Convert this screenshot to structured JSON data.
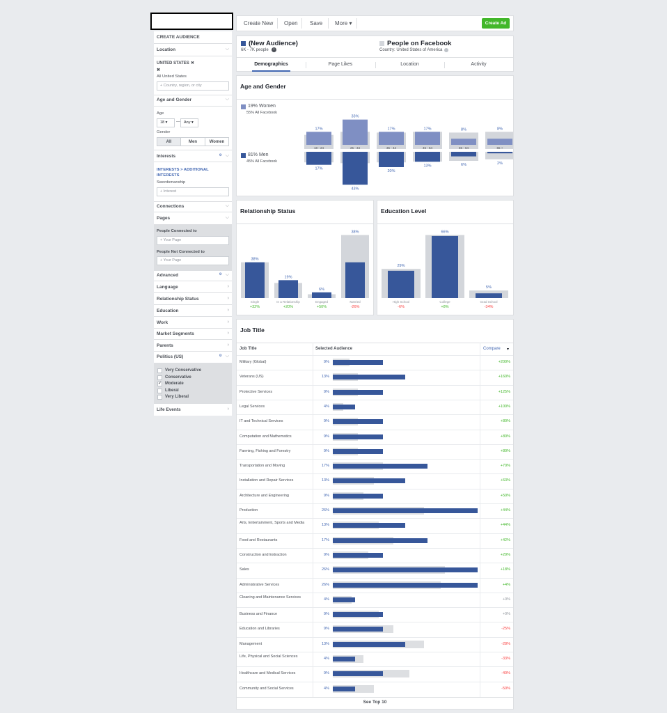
{
  "toolbar": {
    "create_new": "Create New",
    "open": "Open",
    "save": "Save",
    "more": "More ▾",
    "create_ad": "Create Ad"
  },
  "sidebar": {
    "title": "CREATE AUDIENCE",
    "location": {
      "label": "Location",
      "country": "UNITED STATES",
      "remove": "✖",
      "region": "All United States",
      "placeholder": "Country, region, or city"
    },
    "age_gender": {
      "label": "Age and Gender",
      "age_label": "Age",
      "age_min": "18 ▾",
      "dash": "—",
      "age_max": "Any ▾",
      "gender_label": "Gender",
      "gender_options": [
        "All",
        "Men",
        "Women"
      ],
      "gender_selected": "All"
    },
    "interests": {
      "label": "Interests",
      "breadcrumb": "INTERESTS > ADDITIONAL INTERESTS",
      "value": "Swordsmanship",
      "placeholder": "Interest"
    },
    "connections": "Connections",
    "pages": {
      "label": "Pages",
      "connected_label": "People Connected to",
      "not_connected_label": "People Not Connected to",
      "placeholder": "Your Page"
    },
    "collapsed": [
      "Advanced",
      "Language",
      "Relationship Status",
      "Education",
      "Work",
      "Market Segments",
      "Parents"
    ],
    "politics": {
      "label": "Politics (US)",
      "options": [
        {
          "label": "Very Conservative",
          "checked": false
        },
        {
          "label": "Conservative",
          "checked": false
        },
        {
          "label": "Moderate",
          "checked": true
        },
        {
          "label": "Liberal",
          "checked": false
        },
        {
          "label": "Very Liberal",
          "checked": false
        }
      ]
    },
    "life_events": "Life Events"
  },
  "header": {
    "audience_name": "(New Audience)",
    "audience_size": "6K - 7K people",
    "compare_name": "People on Facebook",
    "compare_country": "Country: United States of America",
    "tabs": [
      "Demographics",
      "Page Likes",
      "Location",
      "Activity"
    ],
    "active_tab": "Demographics"
  },
  "colors": {
    "women": "#7f8fc3",
    "men": "#37579a",
    "compare": "#d3d6db",
    "accent": "#4267b2",
    "green": "#42b72a",
    "red": "#fa3e3e"
  },
  "age_gender": {
    "title": "Age and Gender",
    "women_label": "19% Women",
    "women_sub": "55% All Facebook",
    "men_label": "81% Men",
    "men_sub": "45% All Facebook",
    "chart_data": {
      "type": "bar",
      "categories": [
        "18 - 24",
        "25 - 34",
        "35 - 44",
        "45 - 54",
        "55 - 64",
        "65 +"
      ],
      "series": [
        {
          "name": "Women",
          "values": [
            17,
            33,
            17,
            17,
            8,
            8
          ],
          "labels": [
            "17%",
            "33%",
            "17%",
            "17%",
            "8%",
            "8%"
          ]
        },
        {
          "name": "Men",
          "values": [
            17,
            43,
            20,
            13,
            6,
            2
          ],
          "labels": [
            "17%",
            "43%",
            "20%",
            "13%",
            "6%",
            "2%"
          ]
        }
      ]
    }
  },
  "relationship": {
    "title": "Relationship Status",
    "chart_data": {
      "type": "bar",
      "categories": [
        "Single",
        "In a Relationship",
        "Engaged",
        "Married"
      ],
      "values": [
        38,
        19,
        6,
        38
      ],
      "labels": [
        "38%",
        "19%",
        "6%",
        "38%"
      ],
      "deltas": [
        "+32%",
        "+20%",
        "+50%",
        "-26%"
      ]
    }
  },
  "education": {
    "title": "Education Level",
    "chart_data": {
      "type": "bar",
      "categories": [
        "High School",
        "College",
        "Grad School"
      ],
      "values": [
        29,
        66,
        5
      ],
      "labels": [
        "29%",
        "66%",
        "5%"
      ],
      "deltas": [
        "-6%",
        "+8%",
        "-34%"
      ]
    }
  },
  "jobs": {
    "title": "Job Title",
    "col_job": "Job Title",
    "col_selected": "Selected Audience",
    "col_compare": "Compare",
    "footer": "See Top 10",
    "rows": [
      {
        "name": "Military (Global)",
        "pct": "9%",
        "value": 9,
        "delta": "+200%"
      },
      {
        "name": "Veterans (US)",
        "pct": "13%",
        "value": 13,
        "delta": "+160%"
      },
      {
        "name": "Protective Services",
        "pct": "9%",
        "value": 9,
        "delta": "+125%"
      },
      {
        "name": "Legal Services",
        "pct": "4%",
        "value": 4,
        "delta": "+100%"
      },
      {
        "name": "IT and Technical Services",
        "pct": "9%",
        "value": 9,
        "delta": "+80%"
      },
      {
        "name": "Computation and Mathematics",
        "pct": "9%",
        "value": 9,
        "delta": "+80%"
      },
      {
        "name": "Farming, Fishing and Forestry",
        "pct": "9%",
        "value": 9,
        "delta": "+80%"
      },
      {
        "name": "Transportation and Moving",
        "pct": "17%",
        "value": 17,
        "delta": "+70%"
      },
      {
        "name": "Installation and Repair Services",
        "pct": "13%",
        "value": 13,
        "delta": "+63%"
      },
      {
        "name": "Architecture and Engineering",
        "pct": "9%",
        "value": 9,
        "delta": "+50%"
      },
      {
        "name": "Production",
        "pct": "26%",
        "value": 26,
        "delta": "+44%"
      },
      {
        "name": "Arts, Entertainment, Sports and Media",
        "pct": "13%",
        "value": 13,
        "delta": "+44%"
      },
      {
        "name": "Food and Restaurants",
        "pct": "17%",
        "value": 17,
        "delta": "+42%"
      },
      {
        "name": "Construction and Extraction",
        "pct": "9%",
        "value": 9,
        "delta": "+29%"
      },
      {
        "name": "Sales",
        "pct": "26%",
        "value": 26,
        "delta": "+18%"
      },
      {
        "name": "Administrative Services",
        "pct": "26%",
        "value": 26,
        "delta": "+4%"
      },
      {
        "name": "Cleaning and Maintenance Services",
        "pct": "4%",
        "value": 4,
        "delta": "+0%"
      },
      {
        "name": "Business and Finance",
        "pct": "9%",
        "value": 9,
        "delta": "+0%"
      },
      {
        "name": "Education and Libraries",
        "pct": "9%",
        "value": 9,
        "delta": "-25%"
      },
      {
        "name": "Management",
        "pct": "13%",
        "value": 13,
        "delta": "-28%"
      },
      {
        "name": "Life, Physical and Social Sciences",
        "pct": "4%",
        "value": 4,
        "delta": "-33%"
      },
      {
        "name": "Healthcare and Medical Services",
        "pct": "9%",
        "value": 9,
        "delta": "-40%"
      },
      {
        "name": "Community and Social Services",
        "pct": "4%",
        "value": 4,
        "delta": "-50%"
      }
    ]
  }
}
